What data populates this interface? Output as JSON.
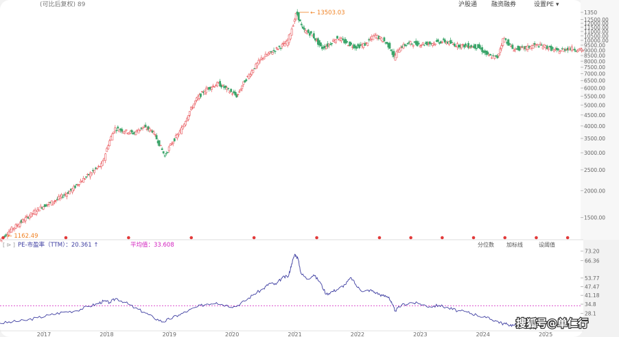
{
  "header": {
    "title": "(可比后复权) 89",
    "links": [
      "沪股通",
      "融资融券",
      "设置PE ▾"
    ]
  },
  "chart_data": [
    {
      "type": "candlestick",
      "title": "",
      "y_scale": "log",
      "ylim": [
        1200,
        13500
      ],
      "y_ticks": [
        "1350",
        "12500.00",
        "12000.00",
        "11500.00",
        "11000.00",
        "10500.00",
        "10000.00",
        "9500.00",
        "9000.00",
        "8500.00",
        "8000.00",
        "7500.00",
        "7000.00",
        "6500.00",
        "6000.00",
        "5500.00",
        "5000.00",
        "4500.00",
        "4000.00",
        "3500.00",
        "3000.00",
        "2500.00",
        "2000.00",
        "1500.00"
      ],
      "x_ticks": [
        "2017",
        "2018",
        "2019",
        "2020",
        "2021",
        "2022",
        "2023",
        "2024",
        "2025"
      ],
      "x_range": [
        2016.3,
        2025.6
      ],
      "annotations": {
        "max_label": "13503.03",
        "max_at": 2021.05,
        "min_label": "1162.49",
        "min_at": 2016.35
      },
      "close_path": [
        [
          2016.3,
          1162
        ],
        [
          2016.5,
          1320
        ],
        [
          2016.75,
          1500
        ],
        [
          2016.95,
          1660
        ],
        [
          2017.2,
          1800
        ],
        [
          2017.45,
          2000
        ],
        [
          2017.6,
          2200
        ],
        [
          2017.8,
          2450
        ],
        [
          2017.95,
          2650
        ],
        [
          2018.05,
          3300
        ],
        [
          2018.15,
          3900
        ],
        [
          2018.3,
          3800
        ],
        [
          2018.45,
          3700
        ],
        [
          2018.6,
          3950
        ],
        [
          2018.75,
          3800
        ],
        [
          2018.85,
          3350
        ],
        [
          2018.95,
          2900
        ],
        [
          2019.05,
          3300
        ],
        [
          2019.2,
          3800
        ],
        [
          2019.35,
          4700
        ],
        [
          2019.45,
          5300
        ],
        [
          2019.6,
          5900
        ],
        [
          2019.8,
          6300
        ],
        [
          2019.95,
          5900
        ],
        [
          2020.1,
          5500
        ],
        [
          2020.2,
          6300
        ],
        [
          2020.35,
          7300
        ],
        [
          2020.5,
          8300
        ],
        [
          2020.7,
          9000
        ],
        [
          2020.9,
          9800
        ],
        [
          2021.0,
          12000
        ],
        [
          2021.05,
          13503
        ],
        [
          2021.15,
          11200
        ],
        [
          2021.3,
          10600
        ],
        [
          2021.45,
          9200
        ],
        [
          2021.55,
          9500
        ],
        [
          2021.7,
          10300
        ],
        [
          2021.85,
          9700
        ],
        [
          2022.0,
          9300
        ],
        [
          2022.15,
          9600
        ],
        [
          2022.3,
          10600
        ],
        [
          2022.45,
          9900
        ],
        [
          2022.55,
          9200
        ],
        [
          2022.6,
          8300
        ],
        [
          2022.7,
          9300
        ],
        [
          2022.85,
          9700
        ],
        [
          2023.0,
          9600
        ],
        [
          2023.2,
          9700
        ],
        [
          2023.4,
          9900
        ],
        [
          2023.6,
          9500
        ],
        [
          2023.8,
          9400
        ],
        [
          2023.95,
          9300
        ],
        [
          2024.1,
          8500
        ],
        [
          2024.25,
          8300
        ],
        [
          2024.35,
          10300
        ],
        [
          2024.5,
          9100
        ],
        [
          2024.7,
          9200
        ],
        [
          2024.85,
          9500
        ],
        [
          2025.0,
          9400
        ],
        [
          2025.2,
          8900
        ],
        [
          2025.4,
          9200
        ],
        [
          2025.6,
          9000
        ]
      ],
      "event_markers": [
        2016.35,
        2017.35,
        2018.35,
        2019.35,
        2020.35,
        2021.35,
        2022.35,
        2022.85,
        2023.35,
        2023.85,
        2024.35,
        2024.85,
        2025.35
      ]
    },
    {
      "type": "line",
      "title": "",
      "legend": {
        "series_label": "PE-市盈率（TTM）：20.361 ↑",
        "avg_label": "平均值：33.608"
      },
      "right_tabs": [
        "分位数",
        "加标线",
        "设阈值"
      ],
      "ylim": [
        17.0,
        75.0
      ],
      "y_ticks": [
        "73.20",
        "66.36",
        "53.77",
        "47.47",
        "41.18",
        "34.8",
        "28.1"
      ],
      "average": 33.608,
      "x_ticks": [
        "2017",
        "2018",
        "2019",
        "2020",
        "2021",
        "2022",
        "2023",
        "2024",
        "2025"
      ],
      "x_range": [
        2016.3,
        2025.6
      ],
      "points": [
        [
          2016.3,
          21
        ],
        [
          2016.5,
          22
        ],
        [
          2016.7,
          23
        ],
        [
          2016.9,
          25
        ],
        [
          2017.1,
          27
        ],
        [
          2017.3,
          29
        ],
        [
          2017.5,
          30
        ],
        [
          2017.7,
          33
        ],
        [
          2017.85,
          35
        ],
        [
          2017.95,
          37
        ],
        [
          2018.05,
          36
        ],
        [
          2018.15,
          39
        ],
        [
          2018.3,
          36
        ],
        [
          2018.45,
          32
        ],
        [
          2018.6,
          29
        ],
        [
          2018.75,
          25
        ],
        [
          2018.9,
          22
        ],
        [
          2019.0,
          24
        ],
        [
          2019.15,
          27
        ],
        [
          2019.3,
          30
        ],
        [
          2019.45,
          33
        ],
        [
          2019.6,
          35
        ],
        [
          2019.75,
          36
        ],
        [
          2019.9,
          34
        ],
        [
          2020.05,
          33
        ],
        [
          2020.2,
          37
        ],
        [
          2020.35,
          42
        ],
        [
          2020.5,
          46
        ],
        [
          2020.6,
          50
        ],
        [
          2020.7,
          49
        ],
        [
          2020.8,
          54
        ],
        [
          2020.9,
          55
        ],
        [
          2020.95,
          64
        ],
        [
          2021.0,
          71
        ],
        [
          2021.05,
          68
        ],
        [
          2021.1,
          57
        ],
        [
          2021.2,
          53
        ],
        [
          2021.3,
          56
        ],
        [
          2021.4,
          51
        ],
        [
          2021.5,
          42
        ],
        [
          2021.6,
          44
        ],
        [
          2021.7,
          46
        ],
        [
          2021.8,
          49
        ],
        [
          2021.9,
          54
        ],
        [
          2022.0,
          47
        ],
        [
          2022.1,
          44
        ],
        [
          2022.2,
          45
        ],
        [
          2022.3,
          43
        ],
        [
          2022.4,
          41
        ],
        [
          2022.5,
          40
        ],
        [
          2022.55,
          35
        ],
        [
          2022.6,
          30
        ],
        [
          2022.7,
          34
        ],
        [
          2022.85,
          36
        ],
        [
          2023.0,
          35
        ],
        [
          2023.15,
          33
        ],
        [
          2023.3,
          34
        ],
        [
          2023.45,
          32
        ],
        [
          2023.6,
          30
        ],
        [
          2023.75,
          29
        ],
        [
          2023.9,
          27
        ],
        [
          2024.05,
          25
        ],
        [
          2024.2,
          23
        ],
        [
          2024.3,
          21
        ],
        [
          2024.4,
          20
        ],
        [
          2024.5,
          19.5
        ],
        [
          2024.6,
          20.4
        ]
      ]
    }
  ],
  "watermark": "搜狐号@单仁行"
}
